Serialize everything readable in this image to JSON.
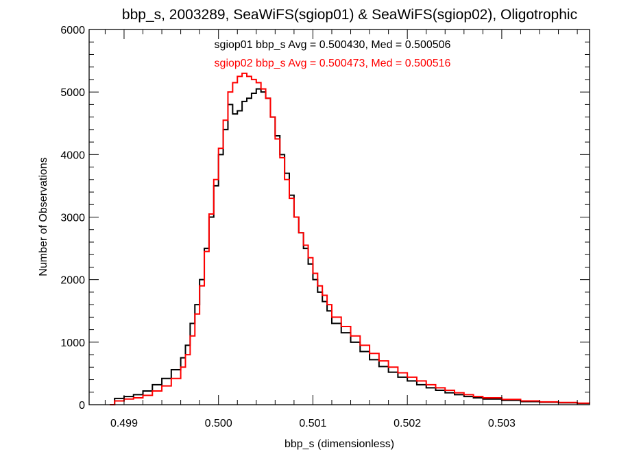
{
  "chart_data": {
    "type": "line",
    "title": "bbp_s, 2003289, SeaWiFS(sgiop01) & SeaWiFS(sgiop02), Oligotrophic",
    "xlabel": "bbp_s (dimensionless)",
    "ylabel": "Number of Observations",
    "xlim": [
      0.49863,
      0.50393
    ],
    "ylim": [
      0,
      6000
    ],
    "x_ticks": [
      0.499,
      0.5,
      0.501,
      0.502,
      0.503
    ],
    "x_tick_labels": [
      "0.499",
      "0.500",
      "0.501",
      "0.502",
      "0.503"
    ],
    "y_ticks": [
      0,
      1000,
      2000,
      3000,
      4000,
      5000,
      6000
    ],
    "y_tick_labels": [
      "0",
      "1000",
      "2000",
      "3000",
      "4000",
      "5000",
      "6000"
    ],
    "grid": false,
    "step_style": "histogram",
    "annotations": [
      {
        "text": "sgiop01 bbp_s Avg = 0.500430, Med = 0.500506",
        "color": "#000000"
      },
      {
        "text": "sgiop02 bbp_s Avg = 0.500473, Med = 0.500516",
        "color": "#ff0000"
      }
    ],
    "series": [
      {
        "color": "#000000",
        "x": [
          0.49885,
          0.4989,
          0.499,
          0.4991,
          0.4992,
          0.4993,
          0.4994,
          0.4995,
          0.4996,
          0.49965,
          0.4997,
          0.49975,
          0.4998,
          0.49985,
          0.4999,
          0.49995,
          0.5,
          0.50005,
          0.5001,
          0.50015,
          0.5002,
          0.50025,
          0.5003,
          0.50035,
          0.5004,
          0.50045,
          0.5005,
          0.50055,
          0.5006,
          0.50065,
          0.5007,
          0.50075,
          0.5008,
          0.50085,
          0.5009,
          0.50095,
          0.501,
          0.50105,
          0.5011,
          0.50115,
          0.5012,
          0.5013,
          0.5014,
          0.5015,
          0.5016,
          0.5017,
          0.5018,
          0.5019,
          0.502,
          0.5021,
          0.5022,
          0.5023,
          0.5024,
          0.5025,
          0.5026,
          0.5027,
          0.5028,
          0.503,
          0.5032,
          0.5034,
          0.5036,
          0.5038,
          0.50393
        ],
        "y": [
          0,
          100,
          130,
          160,
          220,
          320,
          420,
          560,
          750,
          950,
          1300,
          1600,
          2000,
          2500,
          3000,
          3500,
          4000,
          4400,
          4800,
          4650,
          4700,
          4850,
          4900,
          4980,
          5050,
          5000,
          4900,
          4600,
          4300,
          4000,
          3700,
          3350,
          3000,
          2750,
          2500,
          2250,
          2000,
          1800,
          1650,
          1500,
          1300,
          1150,
          1000,
          850,
          720,
          610,
          520,
          440,
          380,
          320,
          270,
          230,
          190,
          160,
          130,
          110,
          90,
          70,
          50,
          40,
          30,
          20,
          20
        ]
      },
      {
        "color": "#ff0000",
        "x": [
          0.49885,
          0.4989,
          0.499,
          0.4991,
          0.4992,
          0.4993,
          0.4994,
          0.4995,
          0.4996,
          0.49965,
          0.4997,
          0.49975,
          0.4998,
          0.49985,
          0.4999,
          0.49995,
          0.5,
          0.50005,
          0.5001,
          0.50015,
          0.5002,
          0.50025,
          0.5003,
          0.50035,
          0.5004,
          0.50045,
          0.5005,
          0.50055,
          0.5006,
          0.50065,
          0.5007,
          0.50075,
          0.5008,
          0.50085,
          0.5009,
          0.50095,
          0.501,
          0.50105,
          0.5011,
          0.50115,
          0.5012,
          0.5013,
          0.5014,
          0.5015,
          0.5016,
          0.5017,
          0.5018,
          0.5019,
          0.502,
          0.5021,
          0.5022,
          0.5023,
          0.5024,
          0.5025,
          0.5026,
          0.5027,
          0.5028,
          0.503,
          0.5032,
          0.5034,
          0.5036,
          0.5038,
          0.50393
        ],
        "y": [
          0,
          60,
          90,
          110,
          150,
          220,
          300,
          420,
          600,
          800,
          1100,
          1450,
          1900,
          2450,
          3050,
          3600,
          4100,
          4550,
          5000,
          5150,
          5250,
          5300,
          5250,
          5200,
          5150,
          5050,
          4900,
          4600,
          4250,
          3950,
          3600,
          3300,
          3000,
          2750,
          2550,
          2350,
          2100,
          1900,
          1750,
          1600,
          1400,
          1250,
          1100,
          950,
          820,
          700,
          600,
          510,
          440,
          380,
          320,
          270,
          230,
          190,
          160,
          130,
          110,
          85,
          60,
          45,
          35,
          25,
          20
        ]
      }
    ]
  }
}
